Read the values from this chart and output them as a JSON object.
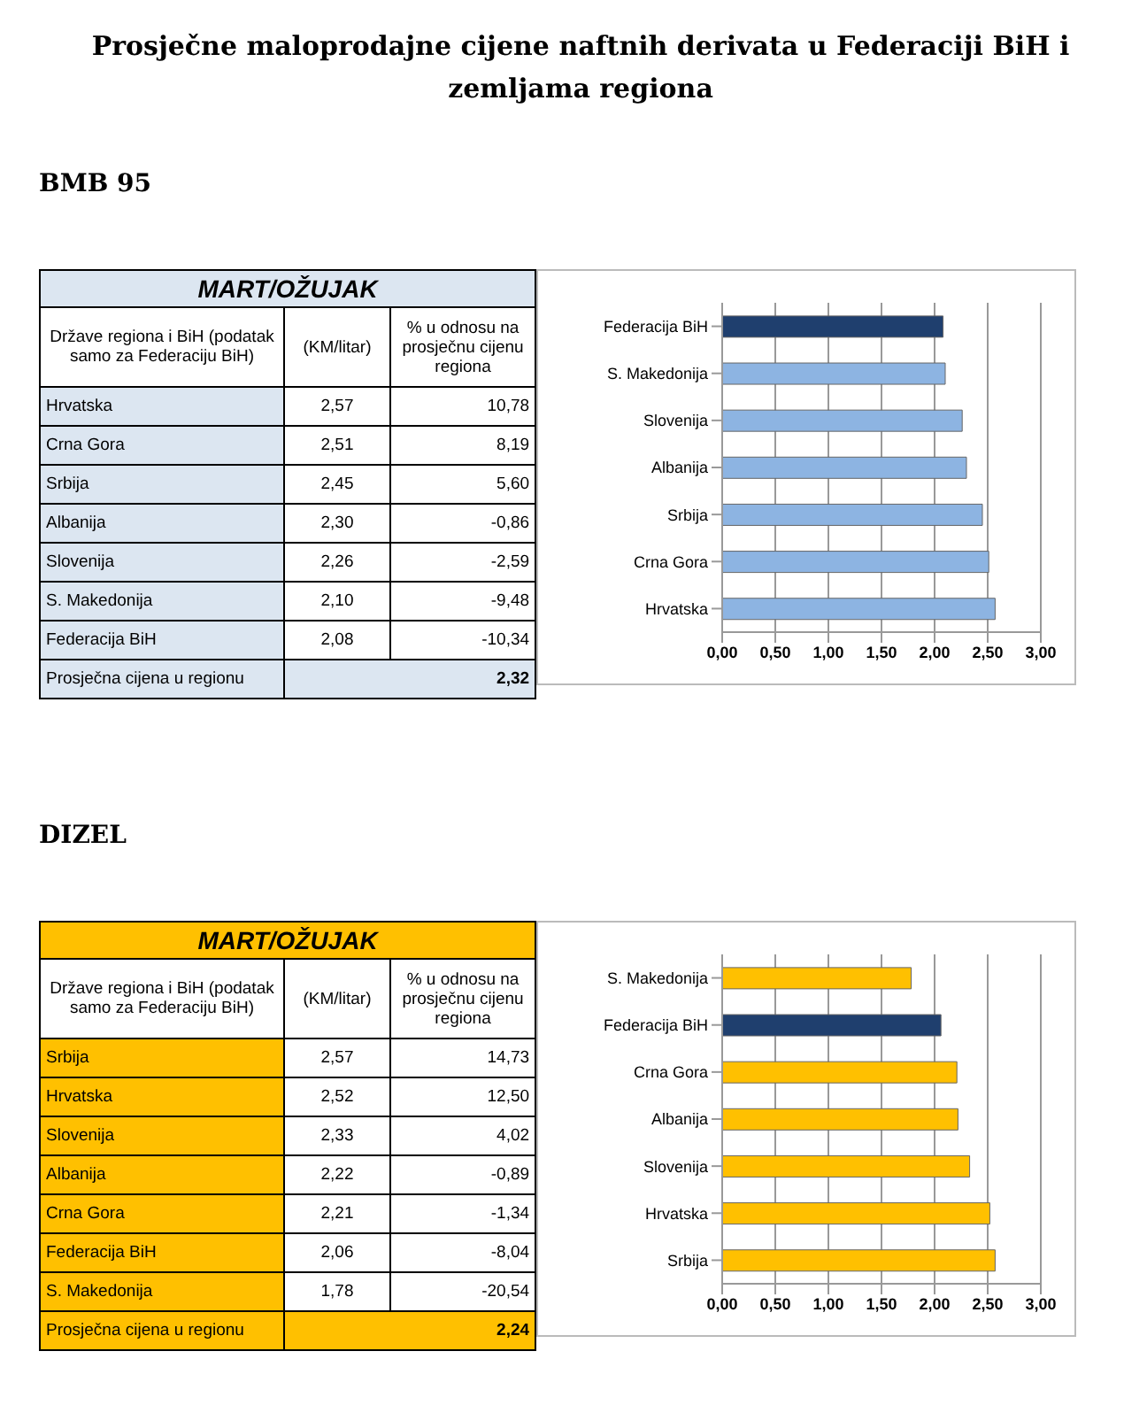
{
  "chart_data": [
    {
      "type": "other",
      "title": "Prosječne maloprodajne cijene naftnih derivata u Federaciji BiH i zemljama regiona",
      "subtitle": "BMB 95",
      "categories": [
        "Hrvatska",
        "Crna Gora",
        "Srbija",
        "Albanija",
        "Slovenija",
        "S. Makedonija",
        "Federacija BiH"
      ],
      "colors": [
        "#dce6f1",
        "#dce6f1",
        "#dce6f1",
        "#dce6f1",
        "#dce6f1",
        "#dce6f1",
        "#dce6f1"
      ],
      "series": [
        {
          "name": "(KM/litar)",
          "values": [
            2.57,
            2.51,
            2.45,
            2.3,
            2.26,
            2.1,
            2.08
          ],
          "value_labels": [
            "2,57",
            "2,51",
            "2,45",
            "2,30",
            "2,26",
            "2,10",
            "2,08"
          ]
        },
        {
          "name": "% u odnosu na prosječnu cijenu regiona",
          "values": [
            10.78,
            8.19,
            5.6,
            -0.86,
            -2.59,
            -9.48,
            -10.34
          ],
          "value_labels": [
            "10,78",
            "8,19",
            "5,60",
            "-0,86",
            "-2,59",
            "-9,48",
            "-10,34"
          ]
        }
      ],
      "annotations": [
        "MART/OŽUJAK",
        "Države regiona i BiH (podatak samo za Federaciju BiH)",
        "Prosječna cijena u regionu",
        "2,32"
      ]
    },
    {
      "type": "bar",
      "orientation": "horizontal",
      "categories": [
        "Federacija BiH",
        "S. Makedonija",
        "Slovenija",
        "Albanija",
        "Srbija",
        "Crna Gora",
        "Hrvatska"
      ],
      "values": [
        2.08,
        2.1,
        2.26,
        2.3,
        2.45,
        2.51,
        2.57
      ],
      "colors": [
        "#1f3f6e",
        "#8db4e2",
        "#8db4e2",
        "#8db4e2",
        "#8db4e2",
        "#8db4e2",
        "#8db4e2"
      ],
      "xlim": [
        0,
        3
      ],
      "xticks": [
        {
          "value": 0,
          "label": "0,00"
        },
        {
          "value": 0.5,
          "label": "0,50"
        },
        {
          "value": 1,
          "label": "1,00"
        },
        {
          "value": 1.5,
          "label": "1,50"
        },
        {
          "value": 2,
          "label": "2,00"
        },
        {
          "value": 2.5,
          "label": "2,50"
        },
        {
          "value": 3,
          "label": "3,00"
        }
      ],
      "grid": "x"
    },
    {
      "type": "other",
      "subtitle": "DIZEL",
      "categories": [
        "Srbija",
        "Hrvatska",
        "Slovenija",
        "Albanija",
        "Crna Gora",
        "Federacija BiH",
        "S. Makedonija"
      ],
      "colors": [
        "#ffc000",
        "#ffc000",
        "#ffc000",
        "#ffc000",
        "#ffc000",
        "#ffc000",
        "#ffc000"
      ],
      "series": [
        {
          "name": "(KM/litar)",
          "values": [
            2.57,
            2.52,
            2.33,
            2.22,
            2.21,
            2.06,
            1.78
          ],
          "value_labels": [
            "2,57",
            "2,52",
            "2,33",
            "2,22",
            "2,21",
            "2,06",
            "1,78"
          ]
        },
        {
          "name": "% u odnosu na prosječnu cijenu regiona",
          "values": [
            14.73,
            12.5,
            4.02,
            -0.89,
            -1.34,
            -8.04,
            -20.54
          ],
          "value_labels": [
            "14,73",
            "12,50",
            "4,02",
            "-0,89",
            "-1,34",
            "-8,04",
            "-20,54"
          ]
        }
      ],
      "annotations": [
        "MART/OŽUJAK",
        "Države regiona i BiH (podatak samo za Federaciju BiH)",
        "Prosječna cijena u regionu",
        "2,24"
      ]
    },
    {
      "type": "bar",
      "orientation": "horizontal",
      "categories": [
        "S. Makedonija",
        "Federacija BiH",
        "Crna Gora",
        "Albanija",
        "Slovenija",
        "Hrvatska",
        "Srbija"
      ],
      "values": [
        1.78,
        2.06,
        2.21,
        2.22,
        2.33,
        2.52,
        2.57
      ],
      "colors": [
        "#ffc000",
        "#1f3f6e",
        "#ffc000",
        "#ffc000",
        "#ffc000",
        "#ffc000",
        "#ffc000"
      ],
      "xlim": [
        0,
        3
      ],
      "xticks": [
        {
          "value": 0,
          "label": "0,00"
        },
        {
          "value": 0.5,
          "label": "0,50"
        },
        {
          "value": 1,
          "label": "1,00"
        },
        {
          "value": 1.5,
          "label": "1,50"
        },
        {
          "value": 2,
          "label": "2,00"
        },
        {
          "value": 2.5,
          "label": "2,50"
        },
        {
          "value": 3,
          "label": "3,00"
        }
      ],
      "grid": "x"
    }
  ]
}
